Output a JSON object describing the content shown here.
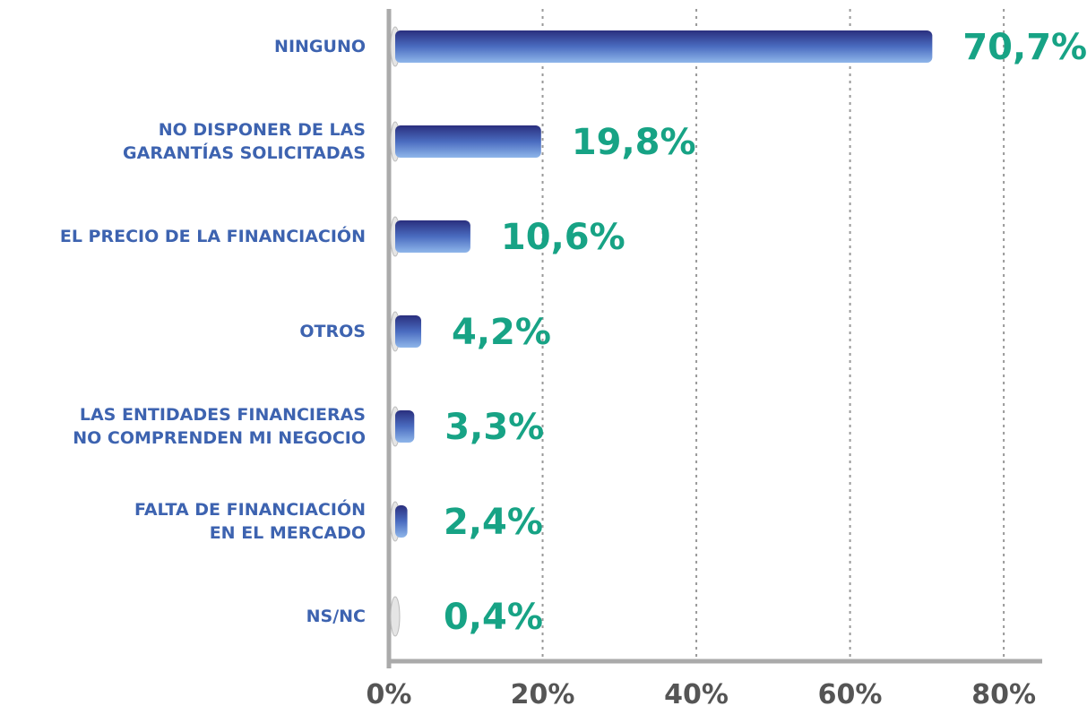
{
  "chart_data": {
    "type": "bar",
    "orientation": "horizontal",
    "categories": [
      "NINGUNO",
      "NO DISPONER DE LAS\nGARANTÍAS SOLICITADAS",
      "EL PRECIO DE LA FINANCIACIÓN",
      "OTROS",
      "LAS ENTIDADES FINANCIERAS\nNO COMPRENDEN MI NEGOCIO",
      "FALTA DE FINANCIACIÓN\nEN EL MERCADO",
      "NS/NC"
    ],
    "values": [
      70.7,
      19.8,
      10.6,
      4.2,
      3.3,
      2.4,
      0.4
    ],
    "value_labels": [
      "70,7%",
      "19,8%",
      "10,6%",
      "4,2%",
      "3,3%",
      "2,4%",
      "0,4%"
    ],
    "xlim": [
      0,
      85
    ],
    "xticks": [
      {
        "value": 0,
        "label": "0%"
      },
      {
        "value": 20,
        "label": "20%"
      },
      {
        "value": 40,
        "label": "40%"
      },
      {
        "value": 60,
        "label": "60%"
      },
      {
        "value": 80,
        "label": "80%"
      }
    ],
    "grid": true,
    "color": "#3a4fa0",
    "label_color": "#17a385"
  }
}
